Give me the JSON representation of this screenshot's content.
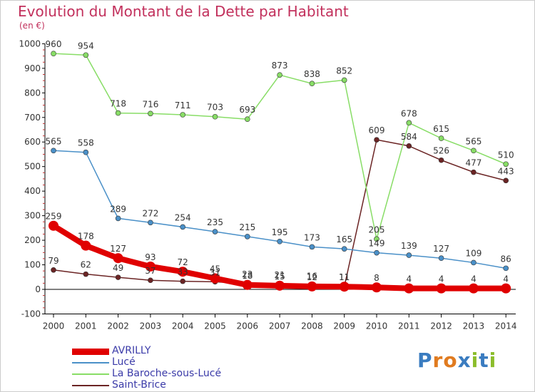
{
  "header": {
    "title": "Evolution du Montant de la Dette par Habitant",
    "unit": "(en €)"
  },
  "logo": {
    "text": "Proxiti",
    "letters": [
      "P",
      "r",
      "o",
      "x",
      "i",
      "t",
      "i"
    ],
    "colors": [
      "#3a7cc0",
      "#e07b20",
      "#e07b20",
      "#3a7cc0",
      "#8bbd2b",
      "#3a7cc0",
      "#8bbd2b"
    ]
  },
  "chart_data": {
    "type": "line",
    "title": "Evolution du Montant de la Dette par Habitant",
    "subtitle": "(en €)",
    "xlabel": "",
    "ylabel": "",
    "x": [
      2000,
      2001,
      2002,
      2003,
      2004,
      2005,
      2006,
      2007,
      2008,
      2009,
      2010,
      2011,
      2012,
      2013,
      2014
    ],
    "ylim": [
      -100,
      1000
    ],
    "yticks": [
      -100,
      0,
      100,
      200,
      300,
      400,
      500,
      600,
      700,
      800,
      900,
      1000
    ],
    "grid": false,
    "legend_position": "bottom-left",
    "series": [
      {
        "name": "AVRILLY",
        "color": "#e00000",
        "values": [
          259,
          178,
          127,
          93,
          72,
          45,
          18,
          15,
          12,
          11,
          8,
          4,
          4,
          4,
          4
        ],
        "labels": [
          "259",
          "178",
          "127",
          "93",
          "72",
          "45",
          "18",
          "15",
          "12",
          "11",
          "8",
          "4",
          "4",
          "4",
          "4"
        ]
      },
      {
        "name": "Lucé",
        "color": "#4a90c8",
        "values": [
          565,
          558,
          289,
          272,
          254,
          235,
          215,
          195,
          173,
          165,
          149,
          139,
          127,
          109,
          86
        ],
        "labels": [
          "565",
          "558",
          "289",
          "272",
          "254",
          "235",
          "215",
          "195",
          "173",
          "165",
          "149",
          "139",
          "127",
          "109",
          "86"
        ]
      },
      {
        "name": "La Baroche-sous-Lucé",
        "color": "#88dd66",
        "values": [
          960,
          954,
          718,
          716,
          711,
          703,
          693,
          873,
          838,
          852,
          205,
          678,
          615,
          565,
          510
        ],
        "labels": [
          "960",
          "954",
          "718",
          "716",
          "711",
          "703",
          "693",
          "873",
          "838",
          "852",
          "205",
          "678",
          "615",
          "565",
          "510"
        ]
      },
      {
        "name": "Saint-Brice",
        "color": "#6b2424",
        "values": [
          79,
          62,
          49,
          37,
          33,
          31,
          23,
          21,
          16,
          11,
          609,
          584,
          526,
          477,
          443
        ],
        "labels": [
          "79",
          "62",
          "49",
          "37",
          "33",
          "31",
          "23",
          "21",
          "16",
          "11",
          "609",
          "584",
          "526",
          "477",
          "443"
        ]
      }
    ]
  }
}
